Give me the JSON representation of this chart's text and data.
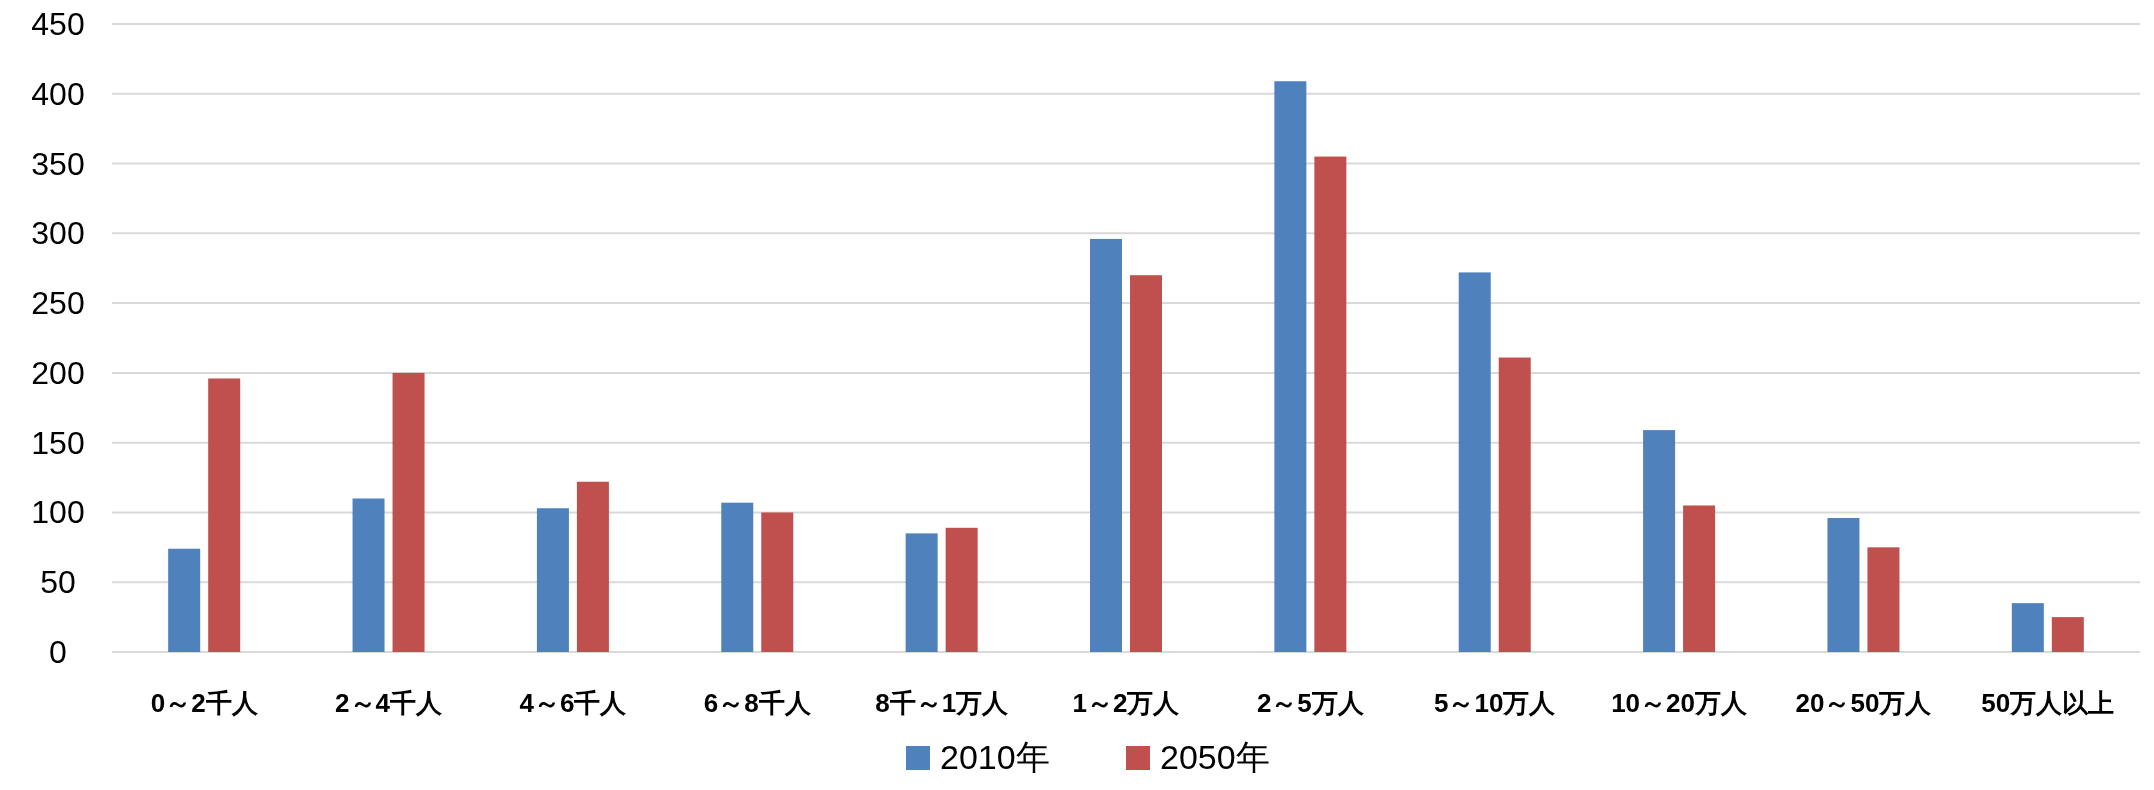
{
  "chart_data": {
    "type": "bar",
    "categories": [
      "0～2千人",
      "2～4千人",
      "4～6千人",
      "6～8千人",
      "8千～1万人",
      "1～2万人",
      "2～5万人",
      "5～10万人",
      "10～20万人",
      "20～50万人",
      "50万人以上"
    ],
    "series": [
      {
        "name": "2010年",
        "color": "#4f81bd",
        "values": [
          74,
          110,
          103,
          107,
          85,
          296,
          409,
          272,
          159,
          96,
          35
        ]
      },
      {
        "name": "2050年",
        "color": "#c0504d",
        "values": [
          196,
          200,
          122,
          100,
          89,
          270,
          355,
          211,
          105,
          75,
          25
        ]
      }
    ],
    "ylim": [
      0,
      450
    ],
    "yticks": [
      0,
      50,
      100,
      150,
      200,
      250,
      300,
      350,
      400,
      450
    ],
    "grid": "y",
    "legend": "bottom"
  }
}
